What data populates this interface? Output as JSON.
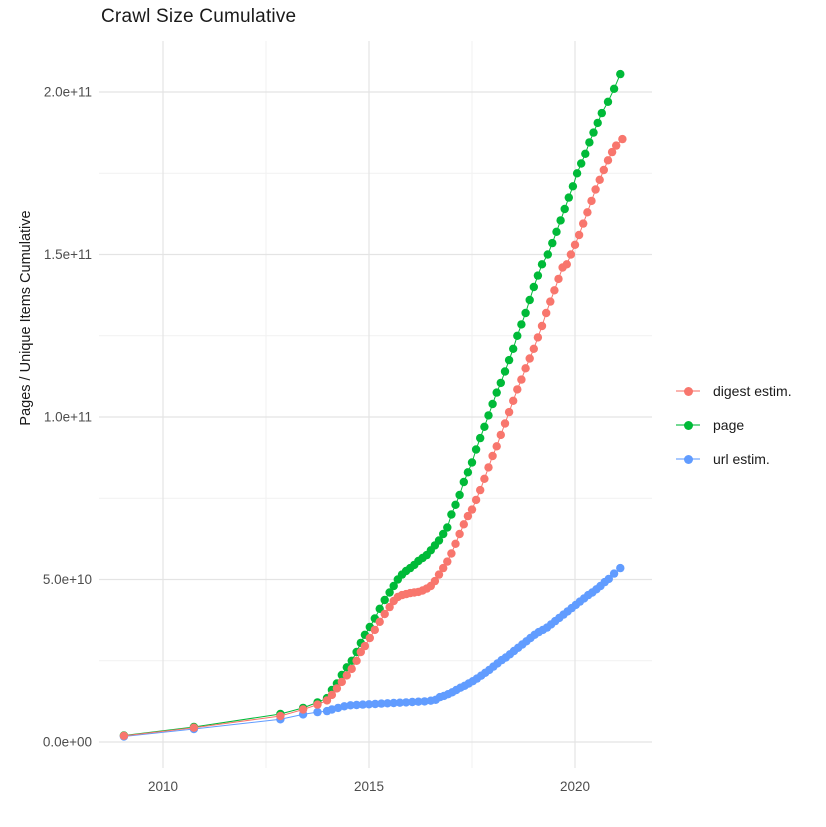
{
  "title": "Crawl Size Cumulative",
  "y_axis_title": "Pages / Unique Items Cumulative",
  "colors": {
    "digest": "#F8766D",
    "page": "#00BA38",
    "url": "#619CFF",
    "grid_major": "#E4E4E4",
    "grid_minor": "#F1F1F1",
    "axis_text": "#4D4D4D",
    "title_text": "#1A1A1A",
    "background": "#FFFFFF"
  },
  "legend": {
    "items": [
      {
        "id": "digest",
        "label": "digest estim."
      },
      {
        "id": "page",
        "label": "page"
      },
      {
        "id": "url",
        "label": "url estim."
      }
    ]
  },
  "chart_data": {
    "type": "line",
    "title": "Crawl Size Cumulative",
    "xlabel": "",
    "ylabel": "Pages / Unique Items Cumulative",
    "y_unit": "1e10 pages (values below are in units of 10 billion)",
    "x_range": [
      2008.4,
      2021.9
    ],
    "y_range_e10": [
      -1.0,
      21.6
    ],
    "grid": "on",
    "legend_position": "right",
    "x_ticks": [
      {
        "label": "2010",
        "x": 2010
      },
      {
        "label": "2015",
        "x": 2015
      },
      {
        "label": "2020",
        "x": 2020
      }
    ],
    "x_minor_ticks": [
      2012.5,
      2017.5
    ],
    "y_ticks": [
      {
        "label": "0.0e+00",
        "v": 0
      },
      {
        "label": "5.0e+10",
        "v": 5
      },
      {
        "label": "1.0e+11",
        "v": 10
      },
      {
        "label": "1.5e+11",
        "v": 15
      },
      {
        "label": "2.0e+11",
        "v": 20
      }
    ],
    "y_minor_ticks": [
      2.5,
      7.5,
      12.5,
      17.5
    ],
    "series": [
      {
        "name": "page",
        "color_key": "page",
        "points": [
          [
            2009.05,
            0.2
          ],
          [
            2010.75,
            0.46
          ],
          [
            2012.85,
            0.86
          ],
          [
            2013.4,
            1.05
          ],
          [
            2013.75,
            1.22
          ],
          [
            2013.98,
            1.35
          ],
          [
            2014.1,
            1.6
          ],
          [
            2014.22,
            1.8
          ],
          [
            2014.34,
            2.06
          ],
          [
            2014.46,
            2.3
          ],
          [
            2014.58,
            2.5
          ],
          [
            2014.7,
            2.77
          ],
          [
            2014.8,
            3.05
          ],
          [
            2014.9,
            3.3
          ],
          [
            2015.02,
            3.54
          ],
          [
            2015.14,
            3.8
          ],
          [
            2015.26,
            4.1
          ],
          [
            2015.38,
            4.37
          ],
          [
            2015.5,
            4.6
          ],
          [
            2015.6,
            4.8
          ],
          [
            2015.7,
            5.0
          ],
          [
            2015.8,
            5.15
          ],
          [
            2015.9,
            5.26
          ],
          [
            2016.0,
            5.35
          ],
          [
            2016.1,
            5.45
          ],
          [
            2016.2,
            5.57
          ],
          [
            2016.3,
            5.66
          ],
          [
            2016.4,
            5.75
          ],
          [
            2016.5,
            5.9
          ],
          [
            2016.6,
            6.05
          ],
          [
            2016.7,
            6.2
          ],
          [
            2016.8,
            6.4
          ],
          [
            2016.9,
            6.6
          ],
          [
            2017.0,
            7.0
          ],
          [
            2017.1,
            7.3
          ],
          [
            2017.2,
            7.6
          ],
          [
            2017.3,
            8.0
          ],
          [
            2017.4,
            8.3
          ],
          [
            2017.5,
            8.6
          ],
          [
            2017.6,
            9.0
          ],
          [
            2017.7,
            9.35
          ],
          [
            2017.8,
            9.7
          ],
          [
            2017.9,
            10.05
          ],
          [
            2018.0,
            10.4
          ],
          [
            2018.1,
            10.75
          ],
          [
            2018.2,
            11.05
          ],
          [
            2018.3,
            11.4
          ],
          [
            2018.4,
            11.75
          ],
          [
            2018.5,
            12.1
          ],
          [
            2018.6,
            12.5
          ],
          [
            2018.7,
            12.85
          ],
          [
            2018.8,
            13.2
          ],
          [
            2018.9,
            13.6
          ],
          [
            2019.0,
            14.0
          ],
          [
            2019.1,
            14.35
          ],
          [
            2019.2,
            14.7
          ],
          [
            2019.34,
            15.0
          ],
          [
            2019.45,
            15.35
          ],
          [
            2019.55,
            15.7
          ],
          [
            2019.65,
            16.05
          ],
          [
            2019.75,
            16.4
          ],
          [
            2019.85,
            16.75
          ],
          [
            2019.95,
            17.1
          ],
          [
            2020.05,
            17.5
          ],
          [
            2020.15,
            17.8
          ],
          [
            2020.25,
            18.1
          ],
          [
            2020.35,
            18.45
          ],
          [
            2020.45,
            18.75
          ],
          [
            2020.55,
            19.05
          ],
          [
            2020.65,
            19.35
          ],
          [
            2020.8,
            19.7
          ],
          [
            2020.95,
            20.1
          ],
          [
            2021.1,
            20.55
          ]
        ]
      },
      {
        "name": "url estim.",
        "color_key": "url",
        "points": [
          [
            2009.05,
            0.17
          ],
          [
            2010.75,
            0.4
          ],
          [
            2012.85,
            0.7
          ],
          [
            2013.4,
            0.85
          ],
          [
            2013.75,
            0.92
          ],
          [
            2013.98,
            0.95
          ],
          [
            2014.1,
            1.0
          ],
          [
            2014.25,
            1.05
          ],
          [
            2014.4,
            1.1
          ],
          [
            2014.55,
            1.13
          ],
          [
            2014.7,
            1.14
          ],
          [
            2014.85,
            1.15
          ],
          [
            2015.0,
            1.16
          ],
          [
            2015.15,
            1.17
          ],
          [
            2015.3,
            1.18
          ],
          [
            2015.45,
            1.19
          ],
          [
            2015.6,
            1.2
          ],
          [
            2015.75,
            1.21
          ],
          [
            2015.9,
            1.22
          ],
          [
            2016.05,
            1.23
          ],
          [
            2016.2,
            1.24
          ],
          [
            2016.35,
            1.25
          ],
          [
            2016.5,
            1.27
          ],
          [
            2016.62,
            1.3
          ],
          [
            2016.72,
            1.38
          ],
          [
            2016.82,
            1.42
          ],
          [
            2016.92,
            1.47
          ],
          [
            2017.02,
            1.53
          ],
          [
            2017.12,
            1.6
          ],
          [
            2017.22,
            1.67
          ],
          [
            2017.32,
            1.73
          ],
          [
            2017.42,
            1.8
          ],
          [
            2017.52,
            1.87
          ],
          [
            2017.62,
            1.95
          ],
          [
            2017.72,
            2.04
          ],
          [
            2017.82,
            2.13
          ],
          [
            2017.92,
            2.22
          ],
          [
            2018.02,
            2.32
          ],
          [
            2018.12,
            2.42
          ],
          [
            2018.22,
            2.52
          ],
          [
            2018.32,
            2.6
          ],
          [
            2018.42,
            2.7
          ],
          [
            2018.52,
            2.8
          ],
          [
            2018.62,
            2.9
          ],
          [
            2018.72,
            3.0
          ],
          [
            2018.82,
            3.1
          ],
          [
            2018.92,
            3.2
          ],
          [
            2019.02,
            3.3
          ],
          [
            2019.12,
            3.38
          ],
          [
            2019.22,
            3.45
          ],
          [
            2019.32,
            3.52
          ],
          [
            2019.42,
            3.62
          ],
          [
            2019.52,
            3.72
          ],
          [
            2019.62,
            3.82
          ],
          [
            2019.72,
            3.92
          ],
          [
            2019.82,
            4.02
          ],
          [
            2019.92,
            4.12
          ],
          [
            2020.02,
            4.22
          ],
          [
            2020.12,
            4.32
          ],
          [
            2020.22,
            4.42
          ],
          [
            2020.32,
            4.52
          ],
          [
            2020.42,
            4.6
          ],
          [
            2020.52,
            4.7
          ],
          [
            2020.62,
            4.8
          ],
          [
            2020.72,
            4.92
          ],
          [
            2020.82,
            5.02
          ],
          [
            2020.95,
            5.18
          ],
          [
            2021.1,
            5.35
          ]
        ]
      },
      {
        "name": "digest estim.",
        "color_key": "digest",
        "points": [
          [
            2009.05,
            0.19
          ],
          [
            2010.75,
            0.44
          ],
          [
            2012.85,
            0.8
          ],
          [
            2013.4,
            1.0
          ],
          [
            2013.75,
            1.15
          ],
          [
            2013.98,
            1.28
          ],
          [
            2014.1,
            1.45
          ],
          [
            2014.22,
            1.65
          ],
          [
            2014.34,
            1.85
          ],
          [
            2014.46,
            2.05
          ],
          [
            2014.58,
            2.25
          ],
          [
            2014.7,
            2.5
          ],
          [
            2014.8,
            2.77
          ],
          [
            2014.9,
            2.95
          ],
          [
            2015.02,
            3.2
          ],
          [
            2015.14,
            3.45
          ],
          [
            2015.26,
            3.7
          ],
          [
            2015.38,
            3.94
          ],
          [
            2015.5,
            4.15
          ],
          [
            2015.6,
            4.34
          ],
          [
            2015.7,
            4.46
          ],
          [
            2015.8,
            4.52
          ],
          [
            2015.9,
            4.55
          ],
          [
            2016.0,
            4.58
          ],
          [
            2016.1,
            4.6
          ],
          [
            2016.2,
            4.62
          ],
          [
            2016.3,
            4.66
          ],
          [
            2016.4,
            4.72
          ],
          [
            2016.5,
            4.8
          ],
          [
            2016.6,
            4.95
          ],
          [
            2016.7,
            5.15
          ],
          [
            2016.8,
            5.35
          ],
          [
            2016.9,
            5.55
          ],
          [
            2017.0,
            5.8
          ],
          [
            2017.1,
            6.1
          ],
          [
            2017.2,
            6.4
          ],
          [
            2017.3,
            6.7
          ],
          [
            2017.4,
            6.95
          ],
          [
            2017.5,
            7.15
          ],
          [
            2017.6,
            7.45
          ],
          [
            2017.7,
            7.75
          ],
          [
            2017.8,
            8.1
          ],
          [
            2017.9,
            8.45
          ],
          [
            2018.0,
            8.8
          ],
          [
            2018.1,
            9.1
          ],
          [
            2018.2,
            9.45
          ],
          [
            2018.3,
            9.8
          ],
          [
            2018.4,
            10.15
          ],
          [
            2018.5,
            10.5
          ],
          [
            2018.6,
            10.85
          ],
          [
            2018.7,
            11.15
          ],
          [
            2018.8,
            11.5
          ],
          [
            2018.9,
            11.8
          ],
          [
            2019.0,
            12.1
          ],
          [
            2019.1,
            12.45
          ],
          [
            2019.2,
            12.8
          ],
          [
            2019.3,
            13.2
          ],
          [
            2019.4,
            13.55
          ],
          [
            2019.5,
            13.9
          ],
          [
            2019.6,
            14.25
          ],
          [
            2019.7,
            14.6
          ],
          [
            2019.8,
            14.7
          ],
          [
            2019.9,
            15.0
          ],
          [
            2020.0,
            15.3
          ],
          [
            2020.1,
            15.6
          ],
          [
            2020.2,
            15.95
          ],
          [
            2020.3,
            16.3
          ],
          [
            2020.4,
            16.65
          ],
          [
            2020.5,
            17.0
          ],
          [
            2020.6,
            17.3
          ],
          [
            2020.7,
            17.6
          ],
          [
            2020.8,
            17.9
          ],
          [
            2020.9,
            18.15
          ],
          [
            2021.0,
            18.35
          ],
          [
            2021.15,
            18.55
          ]
        ]
      }
    ]
  }
}
